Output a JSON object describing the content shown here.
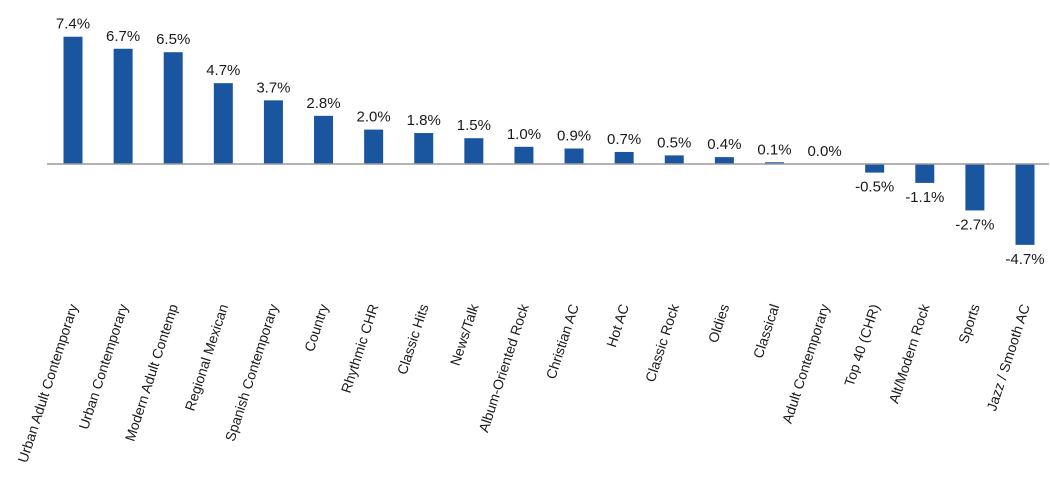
{
  "chart_data": {
    "type": "bar",
    "categories": [
      "Urban Adult Contemporary",
      "Urban Contemporary",
      "Modern Adult Contemp",
      "Regional Mexican",
      "Spanish Contemporary",
      "Country",
      "Rhythmic CHR",
      "Classic Hits",
      "News/Talk",
      "Album-Oriented Rock",
      "Christian AC",
      "Hot AC",
      "Classic Rock",
      "Oldies",
      "Classical",
      "Adult Contemporary",
      "Top 40 (CHR)",
      "Alt/Modern Rock",
      "Sports",
      "Jazz / Smooth AC"
    ],
    "values": [
      7.4,
      6.7,
      6.5,
      4.7,
      3.7,
      2.8,
      2.0,
      1.8,
      1.5,
      1.0,
      0.9,
      0.7,
      0.5,
      0.4,
      0.1,
      0.0,
      -0.5,
      -1.1,
      -2.7,
      -4.7
    ],
    "value_labels": [
      "7.4%",
      "6.7%",
      "6.5%",
      "4.7%",
      "3.7%",
      "2.8%",
      "2.0%",
      "1.8%",
      "1.5%",
      "1.0%",
      "0.9%",
      "0.7%",
      "0.5%",
      "0.4%",
      "0.1%",
      "0.0%",
      "-0.5%",
      "-1.1%",
      "-2.7%",
      "-4.7%"
    ],
    "title": "",
    "xlabel": "",
    "ylabel": "",
    "ylim": [
      -4.7,
      7.4
    ],
    "grid": false,
    "legend": "none",
    "bar_color": "#1a56a0"
  }
}
